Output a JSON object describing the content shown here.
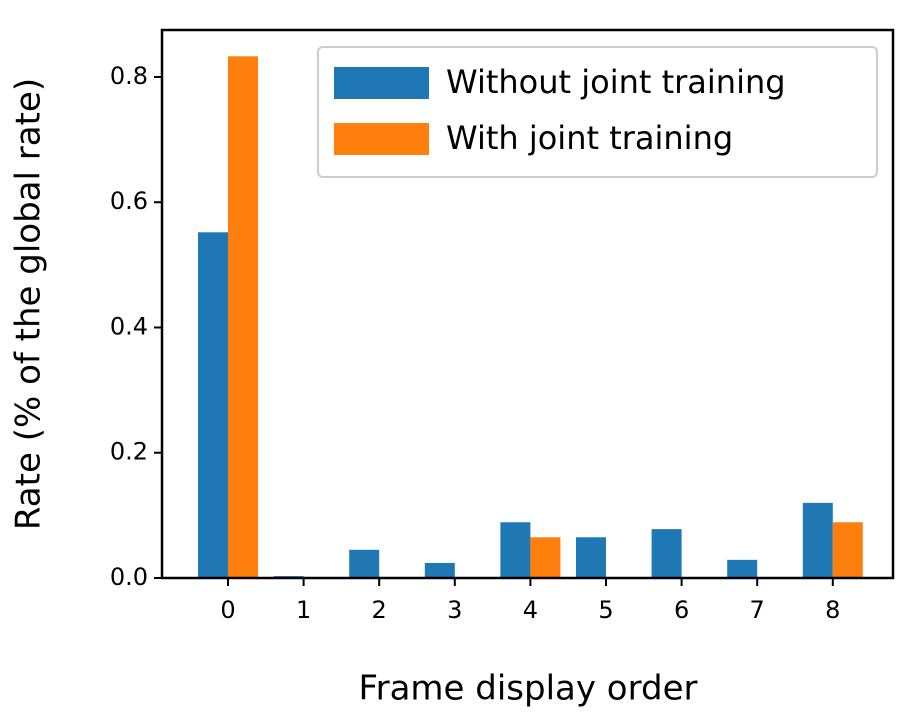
{
  "chart_data": {
    "type": "bar",
    "xlabel": "Frame display order",
    "ylabel": "Rate (% of the global rate)",
    "categories": [
      "0",
      "1",
      "2",
      "3",
      "4",
      "5",
      "6",
      "7",
      "8"
    ],
    "series": [
      {
        "name": "Without joint training",
        "color": "#1f77b4",
        "values": [
          0.552,
          0.003,
          0.045,
          0.024,
          0.089,
          0.065,
          0.078,
          0.029,
          0.12
        ]
      },
      {
        "name": "With joint training",
        "color": "#ff7f0e",
        "values": [
          0.833,
          0.0,
          0.0,
          0.0,
          0.065,
          0.0,
          0.0,
          0.0,
          0.089
        ]
      }
    ],
    "ylim": [
      0,
      0.875
    ],
    "yticks": [
      {
        "value": 0,
        "label": "0.0"
      },
      0.2,
      0.4,
      0.6,
      0.8
    ],
    "legend": "upper right"
  }
}
